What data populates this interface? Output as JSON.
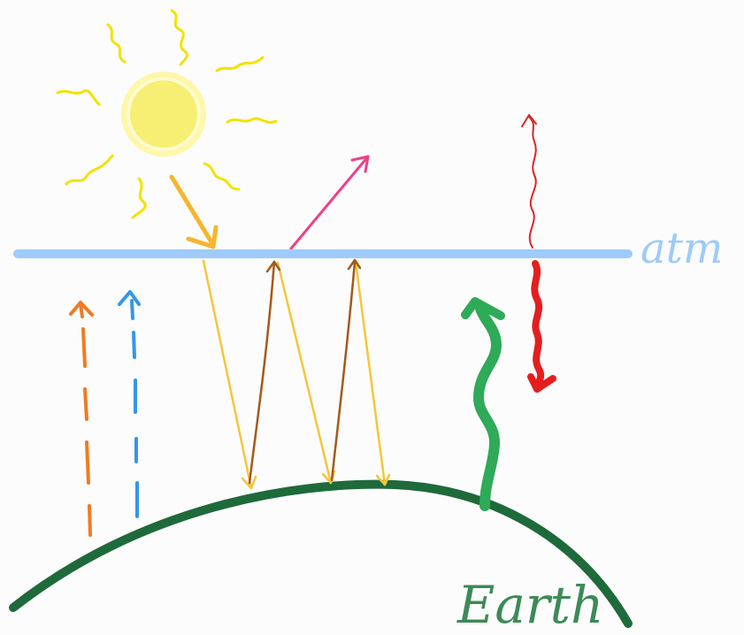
{
  "labels": {
    "atmosphere": "atm",
    "earth": "Earth"
  },
  "colors": {
    "background": "#fcfcfc",
    "sun": "#f7ef73",
    "sun_ring": "#fff7a8",
    "sun_rays": "#f3e200",
    "atmosphere": "#9ecbfa",
    "earth": "#1e6a3b",
    "incoming_sunlight": "#f6b52e",
    "reflected": "#ef3f86",
    "transmitted_shortwave": "#f7c53a",
    "reemitted_longwave": "#a35a1a",
    "surface_emission": "#2eaa58",
    "atmosphere_emission_down": "#e41e1e",
    "atmosphere_emission_up": "#dc2626",
    "dashed_orange": "#f07b22",
    "dashed_blue": "#3596e8"
  }
}
